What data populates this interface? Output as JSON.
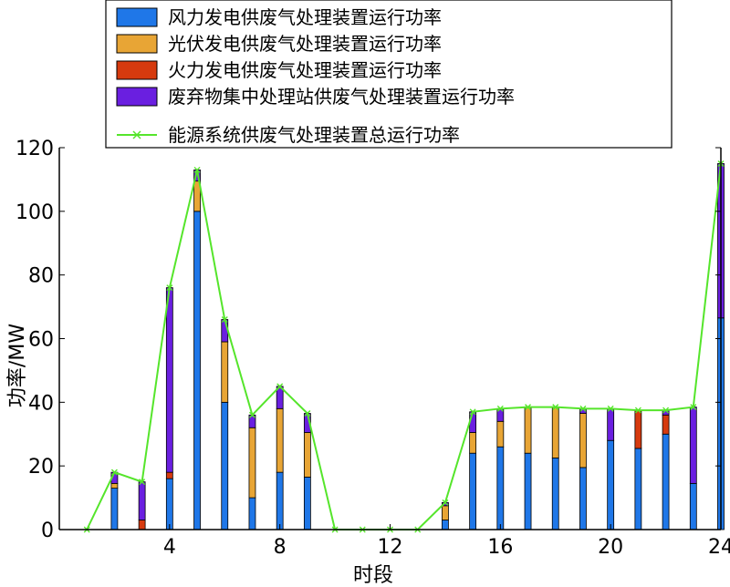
{
  "chart_data": {
    "type": "bar",
    "stacked": true,
    "xlabel": "时段",
    "ylabel": "功率/MW",
    "xlim": [
      0,
      24
    ],
    "ylim": [
      0,
      120
    ],
    "xticks": [
      4,
      8,
      12,
      16,
      20,
      24
    ],
    "yticks": [
      0,
      20,
      40,
      60,
      80,
      100,
      120
    ],
    "grid": false,
    "legend_position": "top",
    "x": [
      1,
      2,
      3,
      4,
      5,
      6,
      7,
      8,
      9,
      10,
      11,
      12,
      13,
      14,
      15,
      16,
      17,
      18,
      19,
      20,
      21,
      22,
      23,
      24
    ],
    "series": [
      {
        "name": "风力发电供废气处理装置运行功率",
        "kind": "bar",
        "color": "#1f77e8",
        "values": [
          0,
          13,
          0,
          16,
          100,
          40,
          10,
          18,
          16.5,
          0,
          0,
          0,
          0,
          3,
          24,
          26,
          24,
          22.5,
          19.5,
          28,
          25.5,
          30,
          14.5,
          66.5
        ]
      },
      {
        "name": "光伏发电供废气处理装置运行功率",
        "kind": "bar",
        "color": "#e8a535",
        "values": [
          0,
          1.5,
          0,
          0,
          9.5,
          19,
          22,
          20,
          14,
          0,
          0,
          0,
          0,
          4.5,
          6.5,
          8,
          14.5,
          16,
          17,
          0,
          0,
          0,
          0,
          0
        ]
      },
      {
        "name": "火力发电供废气处理装置运行功率",
        "kind": "bar",
        "color": "#d63a0e",
        "values": [
          0,
          0,
          3,
          2,
          0,
          0,
          0,
          0,
          0,
          0,
          0,
          0,
          0,
          0,
          0,
          0,
          0,
          0,
          0,
          0,
          12,
          6,
          0,
          0
        ]
      },
      {
        "name": "废弃物集中处理站供废气处理装置运行功率",
        "kind": "bar",
        "color": "#6a1fe0",
        "values": [
          0,
          3.5,
          12,
          58,
          3.5,
          7,
          4,
          7,
          6,
          0,
          0,
          0,
          0,
          1,
          6.5,
          4,
          0,
          0,
          1.5,
          10,
          0,
          1.5,
          24,
          48.5
        ]
      },
      {
        "name": "能源系统供废气处理装置总运行功率",
        "kind": "line",
        "marker": "x",
        "color": "#55e52b",
        "values": [
          0,
          18,
          15,
          76,
          113,
          66,
          36,
          45,
          36.5,
          0,
          0,
          0,
          0,
          8.5,
          37,
          38,
          38.5,
          38.5,
          38,
          38,
          37.5,
          37.5,
          38.5,
          115
        ]
      }
    ]
  }
}
